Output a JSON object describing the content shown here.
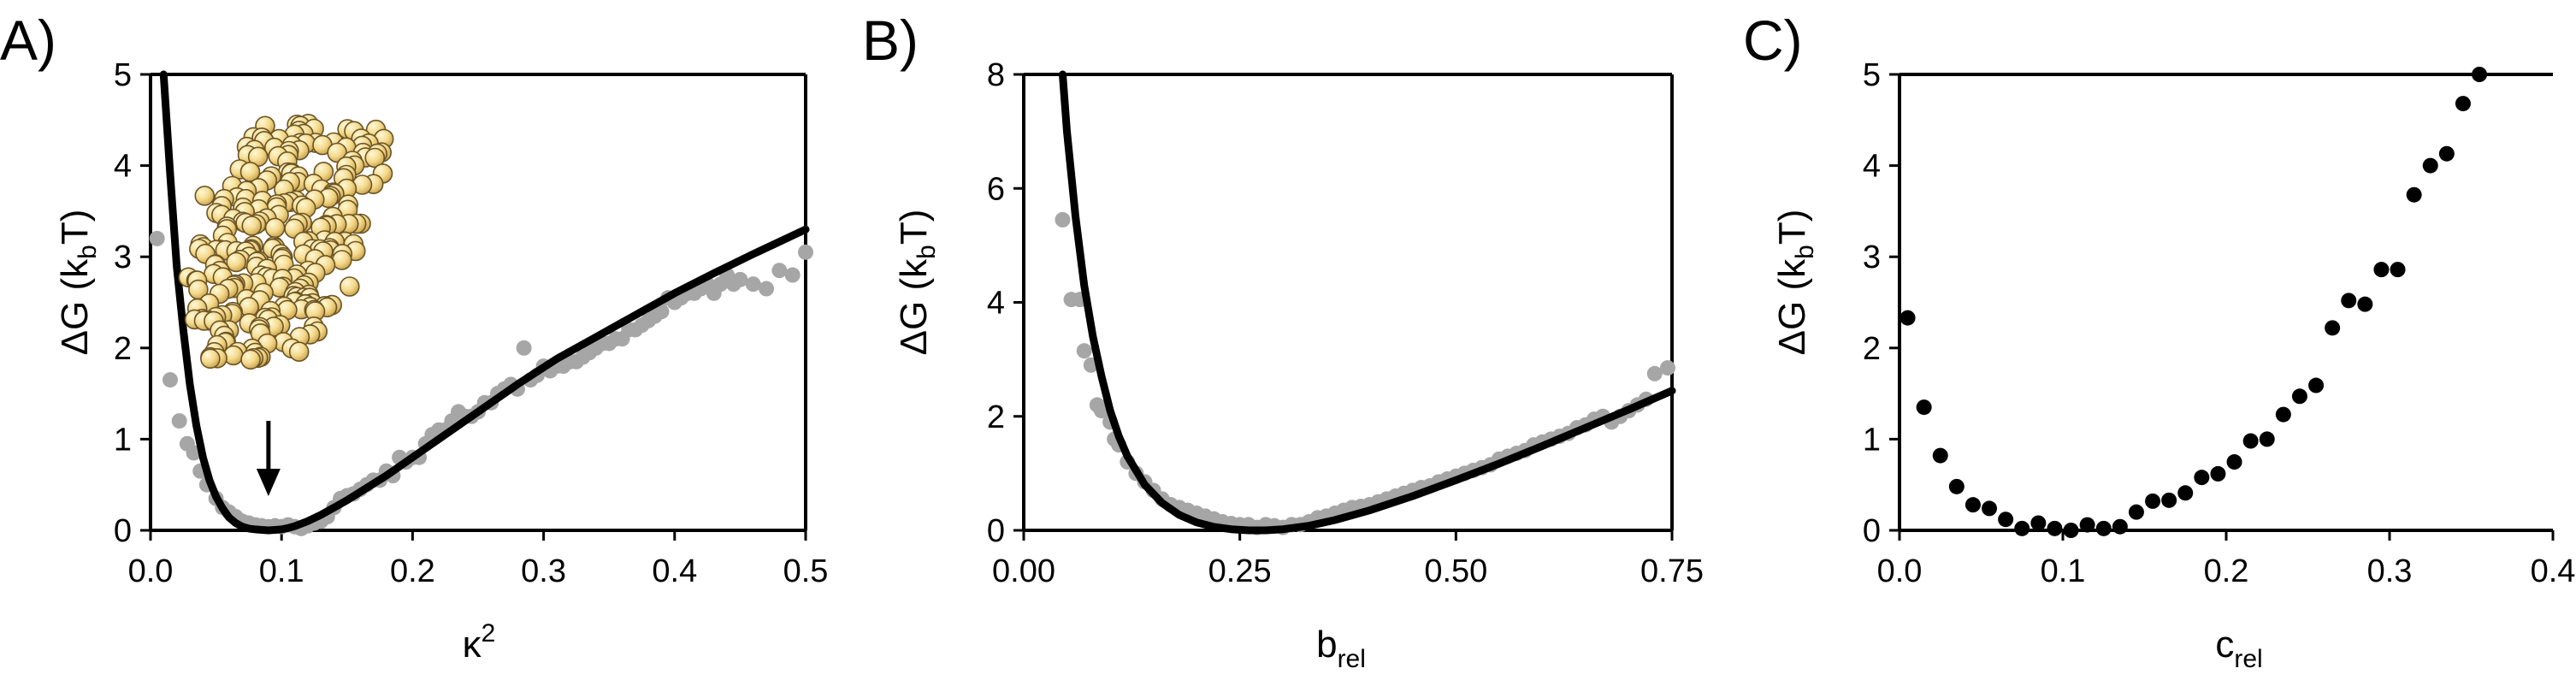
{
  "chart_data": [
    {
      "type": "scatter",
      "panel_label": "A)",
      "xlabel": "κ",
      "xlabel_sup": "2",
      "ylabel": "ΔG (k",
      "ylabel_sub": "b",
      "ylabel_end": "T)",
      "xlim": [
        0,
        0.5
      ],
      "ylim": [
        0,
        5
      ],
      "xticks": [
        0,
        0.1,
        0.2,
        0.3,
        0.4,
        0.5
      ],
      "xtick_labels": [
        "0.0",
        "0.1",
        "0.2",
        "0.3",
        "0.4",
        "0.5"
      ],
      "yticks": [
        0,
        1,
        2,
        3,
        4,
        5
      ],
      "ytick_labels": [
        "0",
        "1",
        "2",
        "3",
        "4",
        "5"
      ],
      "marker_color": "#a6a6a6",
      "line_color": "#000000",
      "inset": "yellow bead-model protein structure with arrow pointing to minimum at κ² ≈ 0.09",
      "arrow_x": 0.09,
      "points": [
        [
          0.005,
          3.2
        ],
        [
          0.015,
          1.65
        ],
        [
          0.022,
          1.2
        ],
        [
          0.028,
          0.95
        ],
        [
          0.033,
          0.85
        ],
        [
          0.038,
          0.65
        ],
        [
          0.043,
          0.5
        ],
        [
          0.05,
          0.35
        ],
        [
          0.055,
          0.25
        ],
        [
          0.06,
          0.2
        ],
        [
          0.065,
          0.15
        ],
        [
          0.07,
          0.1
        ],
        [
          0.075,
          0.08
        ],
        [
          0.08,
          0.06
        ],
        [
          0.085,
          0.05
        ],
        [
          0.09,
          0.04
        ],
        [
          0.095,
          0.05
        ],
        [
          0.1,
          0.04
        ],
        [
          0.105,
          0.06
        ],
        [
          0.11,
          0.04
        ],
        [
          0.115,
          0.02
        ],
        [
          0.12,
          0.05
        ],
        [
          0.125,
          0.08
        ],
        [
          0.13,
          0.1
        ],
        [
          0.135,
          0.15
        ],
        [
          0.14,
          0.25
        ],
        [
          0.145,
          0.35
        ],
        [
          0.15,
          0.38
        ],
        [
          0.155,
          0.4
        ],
        [
          0.16,
          0.45
        ],
        [
          0.165,
          0.5
        ],
        [
          0.17,
          0.55
        ],
        [
          0.175,
          0.55
        ],
        [
          0.18,
          0.65
        ],
        [
          0.185,
          0.6
        ],
        [
          0.19,
          0.8
        ],
        [
          0.195,
          0.75
        ],
        [
          0.2,
          0.8
        ],
        [
          0.205,
          0.8
        ],
        [
          0.21,
          0.95
        ],
        [
          0.215,
          1.05
        ],
        [
          0.22,
          1.1
        ],
        [
          0.225,
          1.1
        ],
        [
          0.23,
          1.2
        ],
        [
          0.235,
          1.3
        ],
        [
          0.24,
          1.25
        ],
        [
          0.245,
          1.25
        ],
        [
          0.25,
          1.3
        ],
        [
          0.255,
          1.4
        ],
        [
          0.26,
          1.4
        ],
        [
          0.265,
          1.5
        ],
        [
          0.27,
          1.55
        ],
        [
          0.275,
          1.6
        ],
        [
          0.28,
          1.55
        ],
        [
          0.285,
          2.0
        ],
        [
          0.29,
          1.65
        ],
        [
          0.295,
          1.7
        ],
        [
          0.3,
          1.8
        ],
        [
          0.305,
          1.75
        ],
        [
          0.31,
          1.8
        ],
        [
          0.315,
          1.8
        ],
        [
          0.32,
          1.85
        ],
        [
          0.325,
          1.85
        ],
        [
          0.33,
          1.9
        ],
        [
          0.335,
          1.95
        ],
        [
          0.34,
          2.0
        ],
        [
          0.345,
          2.05
        ],
        [
          0.35,
          2.05
        ],
        [
          0.355,
          2.1
        ],
        [
          0.36,
          2.1
        ],
        [
          0.365,
          2.2
        ],
        [
          0.37,
          2.2
        ],
        [
          0.375,
          2.25
        ],
        [
          0.38,
          2.3
        ],
        [
          0.385,
          2.35
        ],
        [
          0.39,
          2.4
        ],
        [
          0.395,
          2.55
        ],
        [
          0.4,
          2.5
        ],
        [
          0.405,
          2.55
        ],
        [
          0.41,
          2.6
        ],
        [
          0.415,
          2.6
        ],
        [
          0.42,
          2.65
        ],
        [
          0.425,
          2.7
        ],
        [
          0.43,
          2.6
        ],
        [
          0.435,
          2.7
        ],
        [
          0.44,
          2.8
        ],
        [
          0.445,
          2.7
        ],
        [
          0.45,
          2.75
        ],
        [
          0.46,
          2.7
        ],
        [
          0.47,
          2.65
        ],
        [
          0.48,
          2.85
        ],
        [
          0.49,
          2.8
        ],
        [
          0.5,
          3.05
        ]
      ],
      "fit_curve": [
        [
          0.01,
          5.0
        ],
        [
          0.015,
          3.9
        ],
        [
          0.02,
          2.9
        ],
        [
          0.025,
          2.2
        ],
        [
          0.03,
          1.6
        ],
        [
          0.035,
          1.15
        ],
        [
          0.04,
          0.8
        ],
        [
          0.045,
          0.55
        ],
        [
          0.05,
          0.37
        ],
        [
          0.055,
          0.24
        ],
        [
          0.06,
          0.14
        ],
        [
          0.065,
          0.08
        ],
        [
          0.07,
          0.04
        ],
        [
          0.075,
          0.02
        ],
        [
          0.08,
          0.01
        ],
        [
          0.085,
          0.005
        ],
        [
          0.09,
          0.0
        ],
        [
          0.095,
          0.005
        ],
        [
          0.1,
          0.01
        ],
        [
          0.105,
          0.025
        ],
        [
          0.11,
          0.045
        ],
        [
          0.12,
          0.1
        ],
        [
          0.13,
          0.17
        ],
        [
          0.14,
          0.25
        ],
        [
          0.15,
          0.33
        ],
        [
          0.16,
          0.42
        ],
        [
          0.18,
          0.6
        ],
        [
          0.2,
          0.8
        ],
        [
          0.22,
          1.0
        ],
        [
          0.25,
          1.3
        ],
        [
          0.28,
          1.6
        ],
        [
          0.31,
          1.88
        ],
        [
          0.34,
          2.12
        ],
        [
          0.37,
          2.36
        ],
        [
          0.4,
          2.6
        ],
        [
          0.43,
          2.82
        ],
        [
          0.46,
          3.03
        ],
        [
          0.5,
          3.3
        ]
      ]
    },
    {
      "type": "scatter",
      "panel_label": "B)",
      "xlabel": "b",
      "xlabel_sub": "rel",
      "ylabel": "ΔG (k",
      "ylabel_sub": "b",
      "ylabel_end": "T)",
      "xlim": [
        0,
        0.75
      ],
      "ylim": [
        0,
        8
      ],
      "xticks": [
        0,
        0.25,
        0.5,
        0.75
      ],
      "xtick_labels": [
        "0.00",
        "0.25",
        "0.50",
        "0.75"
      ],
      "yticks": [
        0,
        2,
        4,
        6,
        8
      ],
      "ytick_labels": [
        "0",
        "2",
        "4",
        "6",
        "8"
      ],
      "marker_color": "#a6a6a6",
      "line_color": "#000000",
      "points": [
        [
          0.045,
          5.45
        ],
        [
          0.055,
          4.05
        ],
        [
          0.065,
          4.05
        ],
        [
          0.07,
          3.15
        ],
        [
          0.078,
          2.9
        ],
        [
          0.085,
          2.2
        ],
        [
          0.09,
          2.1
        ],
        [
          0.1,
          1.9
        ],
        [
          0.105,
          1.6
        ],
        [
          0.11,
          1.5
        ],
        [
          0.12,
          1.2
        ],
        [
          0.13,
          1.0
        ],
        [
          0.14,
          0.85
        ],
        [
          0.15,
          0.7
        ],
        [
          0.16,
          0.55
        ],
        [
          0.17,
          0.45
        ],
        [
          0.18,
          0.4
        ],
        [
          0.19,
          0.35
        ],
        [
          0.2,
          0.3
        ],
        [
          0.21,
          0.25
        ],
        [
          0.22,
          0.2
        ],
        [
          0.23,
          0.15
        ],
        [
          0.24,
          0.12
        ],
        [
          0.25,
          0.1
        ],
        [
          0.26,
          0.1
        ],
        [
          0.27,
          0.05
        ],
        [
          0.28,
          0.1
        ],
        [
          0.29,
          0.08
        ],
        [
          0.3,
          0.05
        ],
        [
          0.31,
          0.1
        ],
        [
          0.32,
          0.1
        ],
        [
          0.33,
          0.15
        ],
        [
          0.34,
          0.22
        ],
        [
          0.35,
          0.25
        ],
        [
          0.36,
          0.3
        ],
        [
          0.37,
          0.35
        ],
        [
          0.38,
          0.4
        ],
        [
          0.39,
          0.42
        ],
        [
          0.4,
          0.45
        ],
        [
          0.41,
          0.5
        ],
        [
          0.42,
          0.55
        ],
        [
          0.43,
          0.6
        ],
        [
          0.44,
          0.65
        ],
        [
          0.45,
          0.7
        ],
        [
          0.46,
          0.75
        ],
        [
          0.47,
          0.78
        ],
        [
          0.48,
          0.85
        ],
        [
          0.49,
          0.9
        ],
        [
          0.5,
          0.95
        ],
        [
          0.51,
          1.0
        ],
        [
          0.52,
          1.05
        ],
        [
          0.53,
          1.1
        ],
        [
          0.54,
          1.15
        ],
        [
          0.55,
          1.25
        ],
        [
          0.56,
          1.3
        ],
        [
          0.57,
          1.35
        ],
        [
          0.58,
          1.4
        ],
        [
          0.59,
          1.5
        ],
        [
          0.6,
          1.55
        ],
        [
          0.61,
          1.6
        ],
        [
          0.62,
          1.65
        ],
        [
          0.63,
          1.7
        ],
        [
          0.64,
          1.8
        ],
        [
          0.65,
          1.85
        ],
        [
          0.66,
          1.95
        ],
        [
          0.67,
          2.0
        ],
        [
          0.68,
          1.9
        ],
        [
          0.69,
          2.0
        ],
        [
          0.7,
          2.1
        ],
        [
          0.71,
          2.2
        ],
        [
          0.72,
          2.3
        ],
        [
          0.73,
          2.75
        ],
        [
          0.745,
          2.85
        ]
      ],
      "fit_curve": [
        [
          0.045,
          8.0
        ],
        [
          0.05,
          7.0
        ],
        [
          0.06,
          5.5
        ],
        [
          0.07,
          4.3
        ],
        [
          0.08,
          3.4
        ],
        [
          0.09,
          2.7
        ],
        [
          0.1,
          2.1
        ],
        [
          0.11,
          1.65
        ],
        [
          0.12,
          1.3
        ],
        [
          0.14,
          0.8
        ],
        [
          0.16,
          0.48
        ],
        [
          0.18,
          0.27
        ],
        [
          0.2,
          0.14
        ],
        [
          0.22,
          0.06
        ],
        [
          0.24,
          0.02
        ],
        [
          0.26,
          0.0
        ],
        [
          0.28,
          0.0
        ],
        [
          0.3,
          0.02
        ],
        [
          0.33,
          0.08
        ],
        [
          0.36,
          0.18
        ],
        [
          0.4,
          0.35
        ],
        [
          0.45,
          0.6
        ],
        [
          0.5,
          0.88
        ],
        [
          0.55,
          1.17
        ],
        [
          0.6,
          1.48
        ],
        [
          0.65,
          1.8
        ],
        [
          0.7,
          2.12
        ],
        [
          0.75,
          2.45
        ]
      ]
    },
    {
      "type": "scatter",
      "panel_label": "C)",
      "xlabel": "c",
      "xlabel_sub": "rel",
      "ylabel": "ΔG (k",
      "ylabel_sub": "b",
      "ylabel_end": "T)",
      "xlim": [
        0,
        0.4
      ],
      "ylim": [
        0,
        5
      ],
      "xticks": [
        0,
        0.1,
        0.2,
        0.3,
        0.4
      ],
      "xtick_labels": [
        "0.0",
        "0.1",
        "0.2",
        "0.3",
        "0.4"
      ],
      "yticks": [
        0,
        1,
        2,
        3,
        4,
        5
      ],
      "ytick_labels": [
        "0",
        "1",
        "2",
        "3",
        "4",
        "5"
      ],
      "marker_color": "#000000",
      "points": [
        [
          0.005,
          2.33
        ],
        [
          0.015,
          1.35
        ],
        [
          0.025,
          0.82
        ],
        [
          0.035,
          0.48
        ],
        [
          0.045,
          0.28
        ],
        [
          0.055,
          0.24
        ],
        [
          0.065,
          0.12
        ],
        [
          0.075,
          0.02
        ],
        [
          0.085,
          0.08
        ],
        [
          0.095,
          0.02
        ],
        [
          0.105,
          0.0
        ],
        [
          0.115,
          0.06
        ],
        [
          0.125,
          0.02
        ],
        [
          0.135,
          0.04
        ],
        [
          0.145,
          0.2
        ],
        [
          0.155,
          0.32
        ],
        [
          0.165,
          0.33
        ],
        [
          0.175,
          0.41
        ],
        [
          0.185,
          0.58
        ],
        [
          0.195,
          0.62
        ],
        [
          0.205,
          0.75
        ],
        [
          0.215,
          0.98
        ],
        [
          0.225,
          1.0
        ],
        [
          0.235,
          1.27
        ],
        [
          0.245,
          1.47
        ],
        [
          0.255,
          1.59
        ],
        [
          0.265,
          2.22
        ],
        [
          0.275,
          2.52
        ],
        [
          0.285,
          2.48
        ],
        [
          0.295,
          2.86
        ],
        [
          0.305,
          2.86
        ],
        [
          0.315,
          3.68
        ],
        [
          0.325,
          4.0
        ],
        [
          0.335,
          4.13
        ],
        [
          0.345,
          4.68
        ],
        [
          0.355,
          5.0
        ]
      ]
    }
  ]
}
